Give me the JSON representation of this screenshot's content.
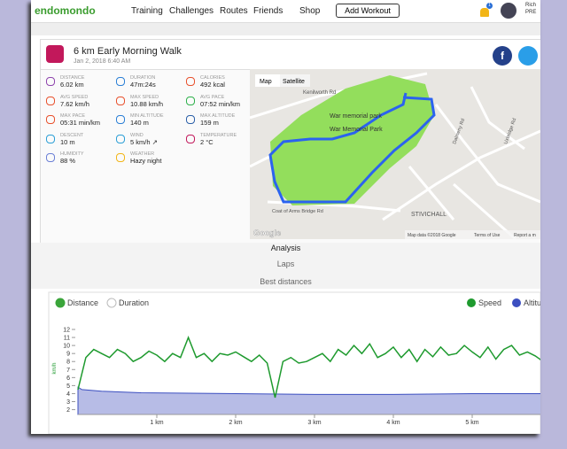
{
  "nav": {
    "brand": "endomondo",
    "links": [
      "Training",
      "Challenges",
      "Routes",
      "Friends",
      "Shop"
    ],
    "button": "Add Workout",
    "badge": "1",
    "user": [
      "Rich",
      "PRE"
    ]
  },
  "workout": {
    "title": "6 km Early Morning Walk",
    "date": "Jan 2, 2018 6:40 AM"
  },
  "stats": [
    {
      "label": "DISTANCE",
      "value": "6.02 km"
    },
    {
      "label": "DURATION",
      "value": "47m:24s"
    },
    {
      "label": "CALORIES",
      "value": "492 kcal"
    },
    {
      "label": "AVG SPEED",
      "value": "7.62 km/h"
    },
    {
      "label": "MAX SPEED",
      "value": "10.88 km/h"
    },
    {
      "label": "AVG PACE",
      "value": "07:52 min/km"
    },
    {
      "label": "MAX PACE",
      "value": "05:31 min/km"
    },
    {
      "label": "MIN ALTITUDE",
      "value": "140 m"
    },
    {
      "label": "MAX ALTITUDE",
      "value": "159 m"
    },
    {
      "label": "DESCENT",
      "value": "10 m"
    },
    {
      "label": "WIND",
      "value": "5 km/h ↗"
    },
    {
      "label": "TEMPERATURE",
      "value": "2 °C"
    },
    {
      "label": "HUMIDITY",
      "value": "88 %"
    },
    {
      "label": "WEATHER",
      "value": "Hazy night"
    }
  ],
  "map": {
    "buttons": [
      "Map",
      "Satellite"
    ],
    "labels": [
      "Kenilworth Rd",
      "War memorial park",
      "War Memorial Park",
      "STIVICHALL",
      "Coat of Arms Bridge Rd",
      "Dalmeny Rd",
      "Uxbridge Rd"
    ],
    "attribution": [
      "Google",
      "Map data ©2018 Google",
      "Terms of Use",
      "Report a m"
    ]
  },
  "tabs": [
    "Analysis",
    "Laps",
    "Best distances"
  ],
  "chart_data": {
    "type": "line",
    "modes": [
      "Distance",
      "Duration"
    ],
    "ylabel": "km/h",
    "xlim": [
      0,
      5.9
    ],
    "xticks": [
      {
        "value": 1,
        "label": "1 km"
      },
      {
        "value": 2,
        "label": "2 km"
      },
      {
        "value": 3,
        "label": "3 km"
      },
      {
        "value": 4,
        "label": "4 km"
      },
      {
        "value": 5,
        "label": "5 km"
      }
    ],
    "ylim": [
      1.4,
      12
    ],
    "yticks": [
      2,
      3,
      4,
      5,
      6,
      7,
      8,
      9,
      10,
      11,
      12
    ],
    "series": [
      {
        "name": "Speed",
        "color": "#1e9a2e",
        "x": [
          0,
          0.1,
          0.2,
          0.3,
          0.4,
          0.5,
          0.6,
          0.7,
          0.8,
          0.9,
          1,
          1.1,
          1.2,
          1.3,
          1.4,
          1.5,
          1.6,
          1.7,
          1.8,
          1.9,
          2,
          2.1,
          2.2,
          2.3,
          2.4,
          2.5,
          2.6,
          2.7,
          2.8,
          2.9,
          3,
          3.1,
          3.2,
          3.3,
          3.4,
          3.5,
          3.6,
          3.7,
          3.8,
          3.9,
          4,
          4.1,
          4.2,
          4.3,
          4.4,
          4.5,
          4.6,
          4.7,
          4.8,
          4.9,
          5,
          5.1,
          5.2,
          5.3,
          5.4,
          5.5,
          5.6,
          5.7,
          5.8,
          5.9
        ],
        "values": [
          4.5,
          8.5,
          9.5,
          9,
          8.5,
          9.5,
          9,
          8,
          8.5,
          9.3,
          8.8,
          8,
          9,
          8.5,
          11,
          8.5,
          9,
          8,
          9,
          8.8,
          9.2,
          8.6,
          8,
          8.8,
          7.8,
          3.5,
          8,
          8.5,
          7.8,
          8,
          8.5,
          9,
          8,
          9.5,
          8.8,
          10,
          9,
          10.2,
          8.5,
          9,
          9.8,
          8.5,
          9.5,
          8,
          9.5,
          8.6,
          9.8,
          8.8,
          9,
          10,
          9.2,
          8.5,
          9.8,
          8.3,
          9.5,
          10,
          8.8,
          9.2,
          8.7,
          8
        ]
      },
      {
        "name": "Altitude",
        "color": "#3c4fc0",
        "x": [
          0,
          0.05,
          0.3,
          0.8,
          2,
          3,
          4,
          5,
          5.9
        ],
        "values": [
          4.8,
          4.5,
          4.3,
          4.1,
          4,
          3.9,
          3.9,
          4,
          4
        ]
      }
    ]
  }
}
